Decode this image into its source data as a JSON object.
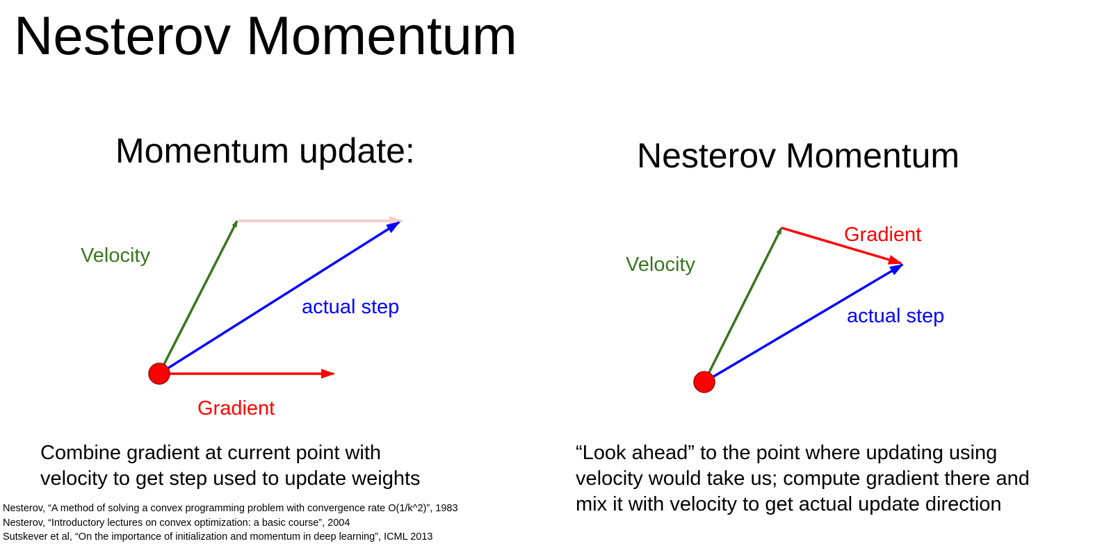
{
  "slide": {
    "title": "Nesterov Momentum"
  },
  "left_panel": {
    "title": "Momentum update:",
    "labels": {
      "velocity": "Velocity",
      "actual_step": "actual step",
      "gradient": "Gradient"
    },
    "description": [
      "Combine gradient at current point with",
      "velocity to get step used to update weights"
    ]
  },
  "right_panel": {
    "title": "Nesterov Momentum",
    "labels": {
      "velocity": "Velocity",
      "gradient": "Gradient",
      "actual_step": "actual step"
    },
    "description": [
      "“Look ahead” to the point where updating using",
      "velocity would take us; compute gradient there and",
      "mix it with velocity to get actual update direction"
    ]
  },
  "references": [
    "Nesterov, “A method of solving a convex programming problem with convergence rate O(1/k^2)”, 1983",
    "Nesterov, “Introductory lectures on convex optimization: a basic course”, 2004",
    "Sutskever et al, “On the importance of initialization and momentum in deep learning”, ICML 2013"
  ],
  "colors": {
    "velocity": "#38761d",
    "gradient": "#ff0000",
    "actual_step": "#0000ff",
    "faded_gradient": "#f4cccc",
    "point_fill": "#ff0000",
    "point_stroke": "#990000"
  }
}
